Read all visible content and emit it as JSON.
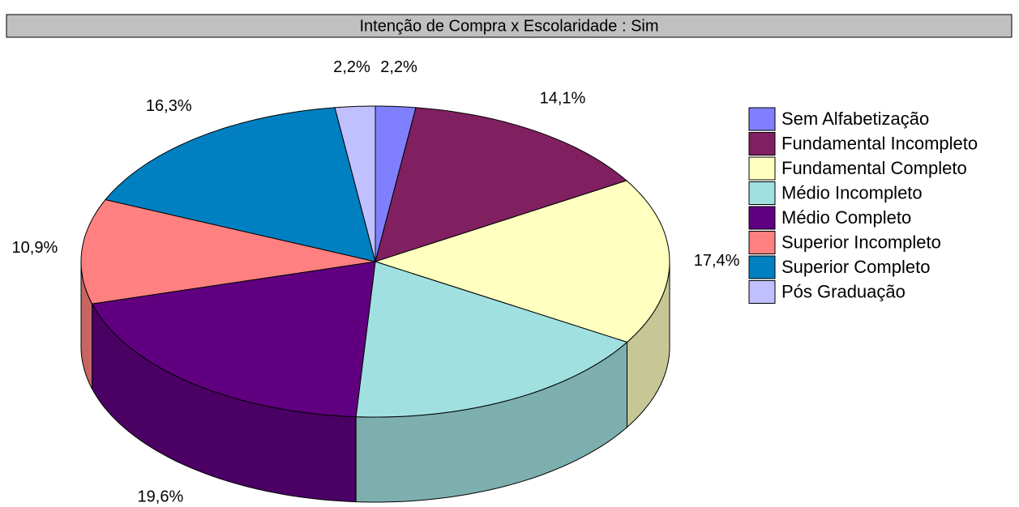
{
  "chart_data": {
    "type": "pie",
    "title": "Intenção de Compra x Escolaridade : Sim",
    "categories": [
      "Sem Alfabetização",
      "Fundamental Incompleto",
      "Fundamental Completo",
      "Médio Incompleto",
      "Médio Completo",
      "Superior Incompleto",
      "Superior Completo",
      "Pós Graduação"
    ],
    "values": [
      2.2,
      14.1,
      17.4,
      17.4,
      19.6,
      10.9,
      16.3,
      2.2
    ],
    "value_labels": [
      "2,2%",
      "14,1%",
      "17,4%",
      "17,4%",
      "19,6%",
      "10,9%",
      "16,3%",
      "2,2%"
    ],
    "colors": [
      "#8080ff",
      "#802060",
      "#ffffc0",
      "#a0e0e0",
      "#600080",
      "#ff8080",
      "#0080c0",
      "#c0c0ff"
    ],
    "legend": "right"
  }
}
